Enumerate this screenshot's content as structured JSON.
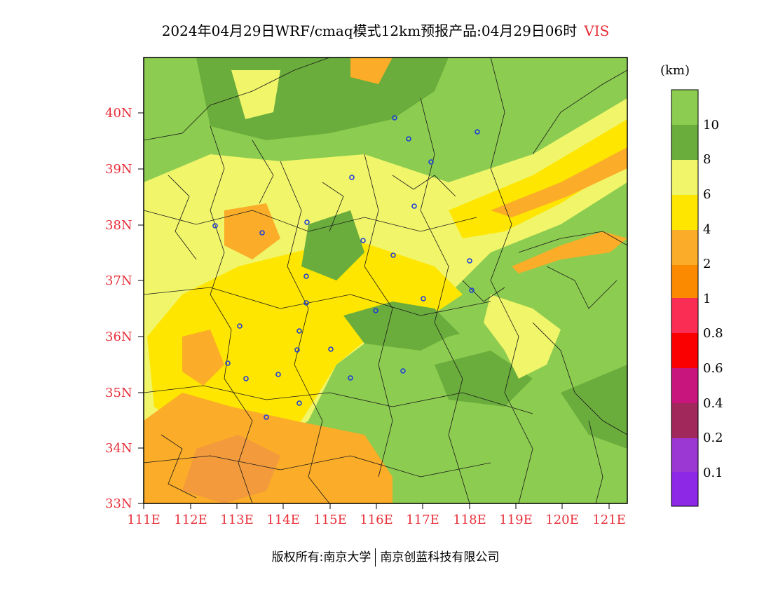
{
  "title": "2024年04月29日WRF/cmaq模式12km预报产品:04月29日06时",
  "variable": "VIS",
  "map": {
    "lat_labels": [
      "40N",
      "39N",
      "38N",
      "37N",
      "36N",
      "35N",
      "34N",
      "33N"
    ],
    "lon_labels": [
      "111E",
      "112E",
      "113E",
      "114E",
      "115E",
      "116E",
      "117E",
      "118E",
      "119E",
      "120E",
      "121E"
    ],
    "lat_range": [
      33,
      41
    ],
    "lon_range": [
      111,
      121.4
    ]
  },
  "colorbar": {
    "unit": "(km)",
    "labels": [
      "10",
      "8",
      "6",
      "4",
      "2",
      "1",
      "0.8",
      "0.6",
      "0.4",
      "0.2",
      "0.1"
    ],
    "colors": [
      "#8ccc50",
      "#6aad3c",
      "#f0f56a",
      "#ffe600",
      "#fbac28",
      "#fb8a00",
      "#fa2d55",
      "#fa0000",
      "#c8147d",
      "#a0285a",
      "#9b37d2",
      "#8c28e6"
    ]
  },
  "footer": {
    "copyright": "版权所有:南京大学",
    "company": "南京创蓝科技有限公司"
  }
}
